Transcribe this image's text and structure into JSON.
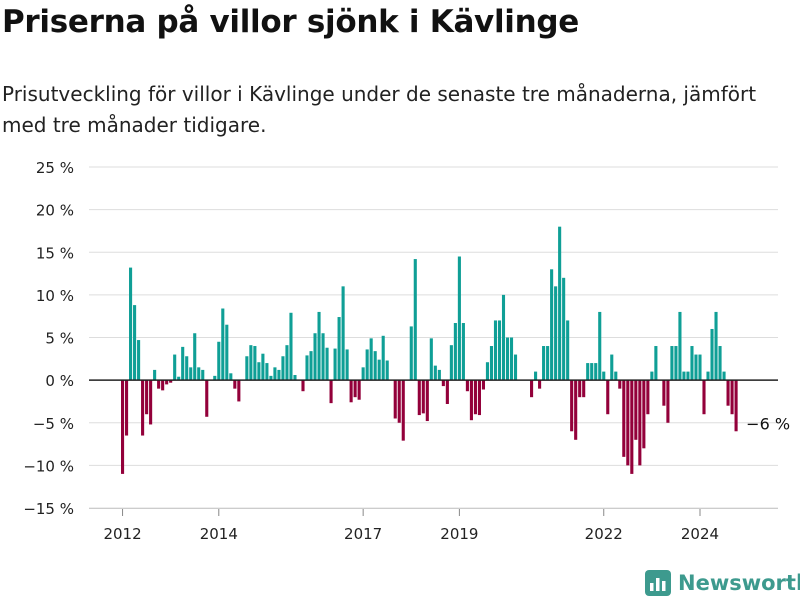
{
  "title": "Priserna på villor sjönk i Kävlinge",
  "subtitle": "Prisutveckling för villor i Kävlinge under de senaste tre månaderna, jämfört med tre månader tidigare.",
  "brand": "Newsworthy",
  "colors": {
    "positive": "#0f9f96",
    "negative": "#93003a",
    "grid": "#dddddd",
    "zero": "#222222"
  },
  "chart_data": {
    "type": "bar",
    "x_start": "2012-01",
    "x_step": "month",
    "ylim": [
      -15,
      25
    ],
    "yticks": [
      -15,
      -10,
      -5,
      0,
      5,
      10,
      15,
      20,
      25
    ],
    "ytick_labels": [
      "−15 %",
      "−10 %",
      "−5 %",
      "0 %",
      "5 %",
      "10 %",
      "15 %",
      "20 %",
      "25 %"
    ],
    "xtick_labels": [
      {
        "label": "2012",
        "x": "2012-01"
      },
      {
        "label": "2014",
        "x": "2014-01"
      },
      {
        "label": "2017",
        "x": "2017-01"
      },
      {
        "label": "2019",
        "x": "2019-01"
      },
      {
        "label": "2022",
        "x": "2022-01"
      },
      {
        "label": "2024",
        "x": "2024-01"
      }
    ],
    "annotation": {
      "text": "−6 %",
      "x": "2025-01",
      "value": -6
    },
    "values": [
      -11,
      -6.5,
      13.2,
      8.8,
      4.7,
      -6.5,
      -4,
      -5.2,
      1.2,
      -1,
      -1.2,
      -0.5,
      -0.3,
      3,
      0.4,
      3.9,
      2.8,
      1.5,
      5.5,
      1.5,
      1.2,
      -4.3,
      0,
      0.5,
      4.5,
      8.4,
      6.5,
      0.8,
      -1,
      -2.5,
      0,
      2.8,
      4.1,
      4,
      2.1,
      3.1,
      2,
      0.5,
      1.5,
      1.2,
      2.8,
      4.1,
      7.9,
      0.6,
      0,
      -1.3,
      2.9,
      3.4,
      5.5,
      8,
      5.5,
      3.8,
      -2.7,
      3.7,
      7.4,
      11,
      3.6,
      -2.6,
      -2,
      -2.3,
      1.5,
      3.6,
      4.9,
      3.4,
      2.4,
      5.2,
      2.3,
      0,
      -4.5,
      -5,
      -7.1,
      0,
      6.3,
      14.2,
      -4.1,
      -3.9,
      -4.8,
      4.9,
      1.7,
      1.2,
      -0.7,
      -2.8,
      4.1,
      6.7,
      14.5,
      6.7,
      -1.3,
      -4.7,
      -4,
      -4.1,
      -1.1,
      2.1,
      4,
      7,
      7,
      10,
      5,
      5,
      3,
      0,
      0,
      0,
      -2,
      1,
      -1,
      4,
      4,
      13,
      11,
      18,
      12,
      7,
      -6,
      -7,
      -2,
      -2,
      2,
      2,
      2,
      8,
      1,
      -4,
      3,
      1,
      -1,
      -9,
      -10,
      -11,
      -7,
      -10,
      -8,
      -4,
      1,
      4,
      0,
      -3,
      -5,
      4,
      4,
      8,
      1,
      1,
      4,
      3,
      3,
      -4,
      1,
      6,
      8,
      4,
      1,
      -3,
      -4,
      -6
    ]
  }
}
